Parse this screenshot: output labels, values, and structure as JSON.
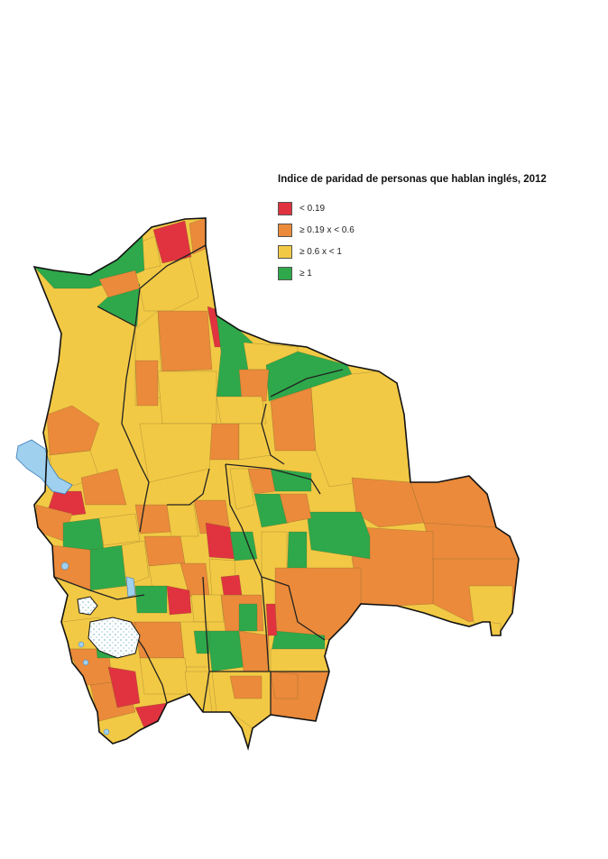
{
  "title": "Indice de paridad de personas que hablan inglés, 2012",
  "legend": {
    "items": [
      {
        "label": "< 0.19",
        "color": "#e0333f"
      },
      {
        "label": "≥ 0.19 x < 0.6",
        "color": "#ea8a3a"
      },
      {
        "label": "≥ 0.6 x < 1",
        "color": "#f2c944"
      },
      {
        "label": "≥ 1",
        "color": "#2ea84a"
      }
    ]
  },
  "colors": {
    "low": "#e0333f",
    "mid_low": "#ea8a3a",
    "mid_high": "#f2c944",
    "high": "#2ea84a",
    "water": "#9fd0ee",
    "border": "#222222"
  }
}
